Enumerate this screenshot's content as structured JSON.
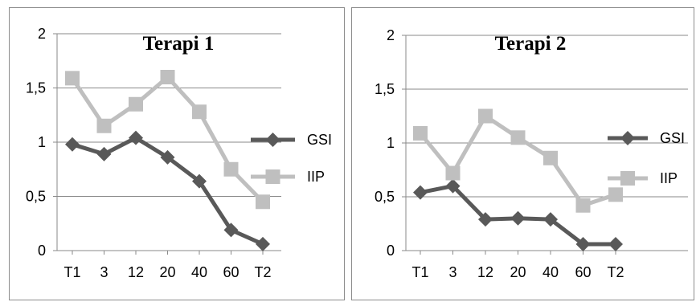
{
  "colors": {
    "gsi": "#595959",
    "iip": "#bfbfbf",
    "grid": "#8a8a8a"
  },
  "chart_data": [
    {
      "type": "line",
      "title": "Terapi 1",
      "categories": [
        "T1",
        "3",
        "12",
        "20",
        "40",
        "60",
        "T2"
      ],
      "yticks": [
        "0",
        "0,5",
        "1",
        "1,5",
        "2"
      ],
      "ylim": [
        0,
        2
      ],
      "grid": true,
      "legend": "right",
      "series": [
        {
          "name": "GSI",
          "marker": "diamond",
          "values": [
            0.98,
            0.89,
            1.04,
            0.86,
            0.64,
            0.19,
            0.06
          ]
        },
        {
          "name": "IIP",
          "marker": "square",
          "values": [
            1.59,
            1.15,
            1.35,
            1.6,
            1.28,
            0.75,
            0.45
          ]
        }
      ]
    },
    {
      "type": "line",
      "title": "Terapi 2",
      "categories": [
        "T1",
        "3",
        "12",
        "20",
        "40",
        "60",
        "T2"
      ],
      "yticks": [
        "0",
        "0,5",
        "1",
        "1,5",
        "2"
      ],
      "ylim": [
        0,
        2
      ],
      "grid": true,
      "legend": "right",
      "series": [
        {
          "name": "GSI",
          "marker": "diamond",
          "values": [
            0.54,
            0.6,
            0.29,
            0.3,
            0.29,
            0.06,
            0.06
          ]
        },
        {
          "name": "IIP",
          "marker": "square",
          "values": [
            1.09,
            0.72,
            1.25,
            1.05,
            0.86,
            0.42,
            0.52
          ]
        }
      ]
    }
  ]
}
